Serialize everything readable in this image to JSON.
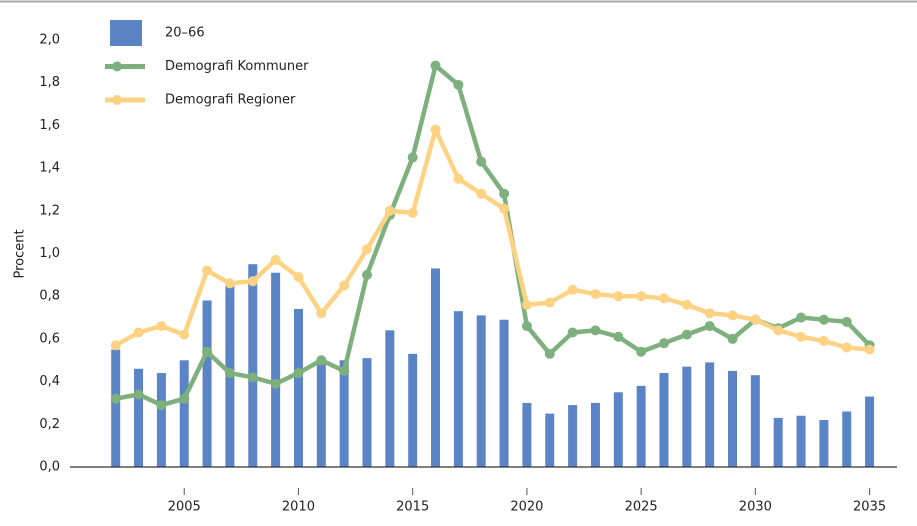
{
  "chart_data": {
    "type": "combo",
    "y_label": "Procent",
    "x": [
      2002,
      2003,
      2004,
      2005,
      2006,
      2007,
      2008,
      2009,
      2010,
      2011,
      2012,
      2013,
      2014,
      2015,
      2016,
      2017,
      2018,
      2019,
      2020,
      2021,
      2022,
      2023,
      2024,
      2025,
      2026,
      2027,
      2028,
      2029,
      2030,
      2031,
      2032,
      2033,
      2034,
      2035
    ],
    "series": [
      {
        "name": "20–66",
        "type": "bar",
        "color": "#5b84c6",
        "values": [
          0.55,
          0.46,
          0.44,
          0.5,
          0.78,
          0.85,
          0.95,
          0.91,
          0.74,
          0.5,
          0.5,
          0.51,
          0.64,
          0.53,
          0.93,
          0.73,
          0.71,
          0.69,
          0.3,
          0.25,
          0.29,
          0.3,
          0.35,
          0.38,
          0.44,
          0.47,
          0.49,
          0.45,
          0.43,
          0.23,
          0.24,
          0.22,
          0.26,
          0.33
        ]
      },
      {
        "name": "Demografi Kommuner",
        "type": "line",
        "color": "#7db07c",
        "values": [
          0.32,
          0.34,
          0.29,
          0.32,
          0.54,
          0.44,
          0.42,
          0.39,
          0.44,
          0.5,
          0.45,
          0.9,
          1.18,
          1.45,
          1.88,
          1.79,
          1.43,
          1.28,
          0.66,
          0.53,
          0.63,
          0.64,
          0.61,
          0.54,
          0.58,
          0.62,
          0.66,
          0.6,
          0.69,
          0.65,
          0.7,
          0.69,
          0.68,
          0.57
        ]
      },
      {
        "name": "Demografi Regioner",
        "type": "line",
        "color": "#fdd383",
        "values": [
          0.57,
          0.63,
          0.66,
          0.62,
          0.92,
          0.86,
          0.87,
          0.97,
          0.89,
          0.72,
          0.85,
          1.02,
          1.2,
          1.19,
          1.58,
          1.35,
          1.28,
          1.21,
          0.76,
          0.77,
          0.83,
          0.81,
          0.8,
          0.8,
          0.79,
          0.76,
          0.72,
          0.71,
          0.69,
          0.64,
          0.61,
          0.59,
          0.56,
          0.55
        ]
      }
    ],
    "xlim": [
      2000,
      2036.2
    ],
    "xticks": [
      2005,
      2010,
      2015,
      2020,
      2025,
      2030,
      2035
    ],
    "ylim": [
      0,
      2.0
    ],
    "yticks": [
      {
        "value": 0,
        "label": "0,0"
      },
      {
        "value": 0.2,
        "label": "0,2"
      },
      {
        "value": 0.4,
        "label": "0,4"
      },
      {
        "value": 0.6,
        "label": "0,6"
      },
      {
        "value": 0.8,
        "label": "0,8"
      },
      {
        "value": 1.0,
        "label": "1,0"
      },
      {
        "value": 1.2,
        "label": "1,2"
      },
      {
        "value": 1.4,
        "label": "1,4"
      },
      {
        "value": 1.6,
        "label": "1,6"
      },
      {
        "value": 1.8,
        "label": "1,8"
      },
      {
        "value": 2.0,
        "label": "2,0"
      }
    ],
    "legend": "top-left",
    "grid": false
  }
}
